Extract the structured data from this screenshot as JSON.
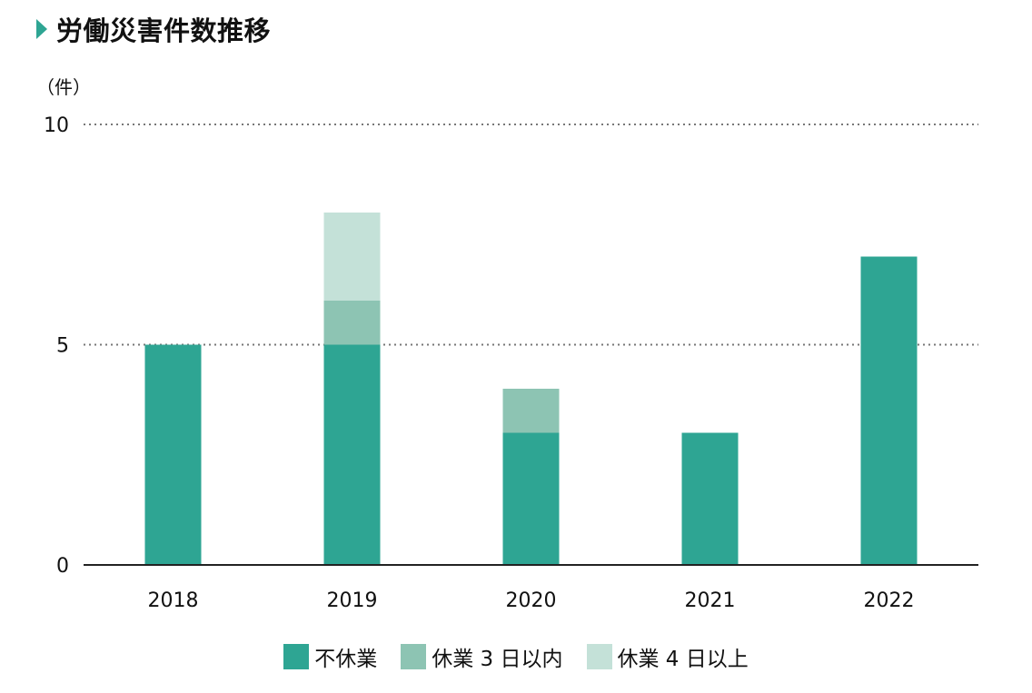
{
  "title": "労働災害件数推移",
  "chart_data": {
    "type": "bar",
    "stacked": true,
    "unit_label": "（件）",
    "categories": [
      "2018",
      "2019",
      "2020",
      "2021",
      "2022"
    ],
    "series": [
      {
        "name": "不休業",
        "color": "#2ea593",
        "values": [
          5,
          5,
          3,
          3,
          7
        ]
      },
      {
        "name": "休業 3 日以内",
        "color": "#8dc4b3",
        "values": [
          0,
          1,
          1,
          0,
          0
        ]
      },
      {
        "name": "休業 4 日以上",
        "color": "#c4e1d8",
        "values": [
          0,
          2,
          0,
          0,
          0
        ]
      }
    ],
    "yticks": [
      "0",
      "5",
      "10"
    ],
    "ylim": [
      0,
      10
    ],
    "grid": "dotted horizontal at 5 and 10",
    "legend_position": "bottom"
  }
}
